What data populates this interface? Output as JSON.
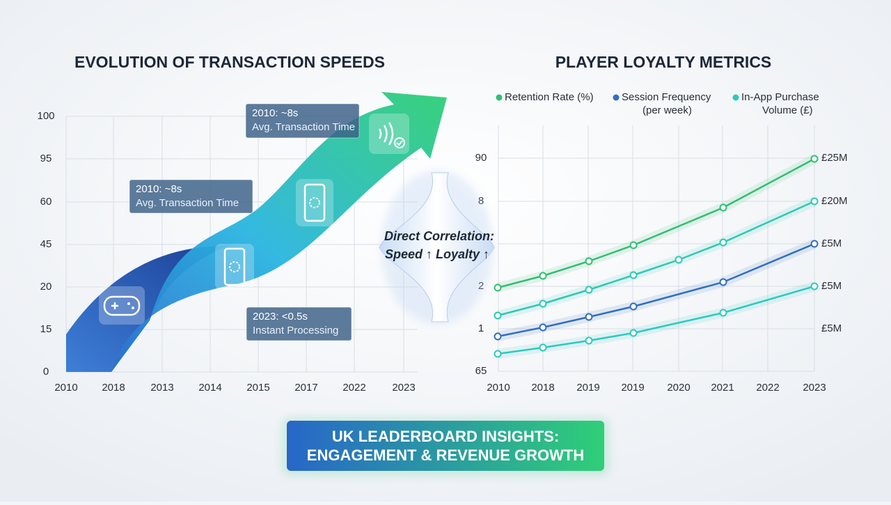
{
  "left_chart": {
    "title": "EVOLUTION OF TRANSACTION SPEEDS",
    "y_labels": [
      "100",
      "95",
      "60",
      "45",
      "20",
      "15",
      "0"
    ],
    "x_labels": [
      "2010",
      "2018",
      "2013",
      "2014",
      "2015",
      "2017",
      "2022",
      "2023"
    ],
    "callouts": [
      {
        "title": "2010: ~8s",
        "text": "Avg. Transaction Time"
      },
      {
        "title": "2010: ~8s",
        "text": "Avg. Transaction Time"
      },
      {
        "title": "2023: <0.5s",
        "text": "Instant Processing"
      }
    ]
  },
  "center": {
    "lines": [
      "Direct Correlation:",
      "Speed ↑ Loyalty ↑"
    ]
  },
  "right_chart": {
    "title": "PLAYER LOYALTY METRICS",
    "legend": [
      {
        "name": [
          "Retention Rate (%)"
        ],
        "color": "#2fbf71"
      },
      {
        "name": [
          "Session Frequency",
          "(per week)"
        ],
        "color": "#2f6fc0"
      },
      {
        "name": [
          "In-App Purchase",
          "Volume (£)"
        ],
        "color": "#2cc9c0"
      }
    ],
    "y_labels": [
      "90",
      "8",
      "2",
      "1",
      "65"
    ],
    "y2_labels": [
      "£25M",
      "£20M",
      "£5M",
      "£5M",
      "£5M"
    ],
    "x_labels": [
      "2010",
      "2018",
      "2019",
      "2019",
      "2020",
      "2021",
      "2022",
      "2023"
    ]
  },
  "banner": {
    "lines": [
      "UK LEADERBOARD INSIGHTS:",
      "ENGAGEMENT & REVENUE GROWTH"
    ]
  }
}
